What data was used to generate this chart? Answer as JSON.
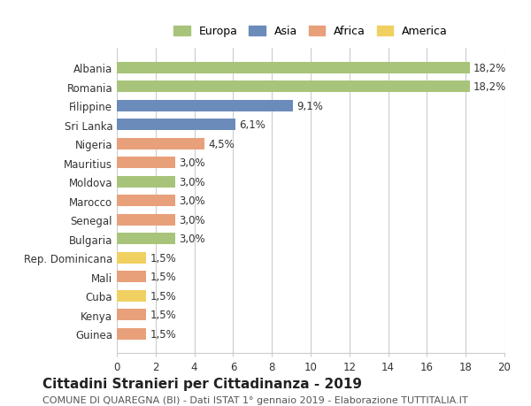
{
  "categories": [
    "Albania",
    "Romania",
    "Filippine",
    "Sri Lanka",
    "Nigeria",
    "Mauritius",
    "Moldova",
    "Marocco",
    "Senegal",
    "Bulgaria",
    "Rep. Dominicana",
    "Mali",
    "Cuba",
    "Kenya",
    "Guinea"
  ],
  "values": [
    18.2,
    18.2,
    9.1,
    6.1,
    4.5,
    3.0,
    3.0,
    3.0,
    3.0,
    3.0,
    1.5,
    1.5,
    1.5,
    1.5,
    1.5
  ],
  "labels": [
    "18,2%",
    "18,2%",
    "9,1%",
    "6,1%",
    "4,5%",
    "3,0%",
    "3,0%",
    "3,0%",
    "3,0%",
    "3,0%",
    "1,5%",
    "1,5%",
    "1,5%",
    "1,5%",
    "1,5%"
  ],
  "bar_colors": [
    "#a8c47a",
    "#a8c47a",
    "#6b8cba",
    "#6b8cba",
    "#e8a07a",
    "#e8a07a",
    "#a8c47a",
    "#e8a07a",
    "#e8a07a",
    "#a8c47a",
    "#f0d060",
    "#e8a07a",
    "#f0d060",
    "#e8a07a",
    "#e8a07a"
  ],
  "legend": [
    {
      "label": "Europa",
      "color": "#a8c47a"
    },
    {
      "label": "Asia",
      "color": "#6b8cba"
    },
    {
      "label": "Africa",
      "color": "#e8a07a"
    },
    {
      "label": "America",
      "color": "#f0d060"
    }
  ],
  "xlim": [
    0,
    20
  ],
  "xticks": [
    0,
    2,
    4,
    6,
    8,
    10,
    12,
    14,
    16,
    18,
    20
  ],
  "title": "Cittadini Stranieri per Cittadinanza - 2019",
  "subtitle": "COMUNE DI QUAREGNA (BI) - Dati ISTAT 1° gennaio 2019 - Elaborazione TUTTITALIA.IT",
  "background_color": "#ffffff",
  "grid_color": "#cccccc",
  "bar_height": 0.6,
  "label_fontsize": 8.5,
  "tick_fontsize": 8.5,
  "title_fontsize": 11,
  "subtitle_fontsize": 8
}
